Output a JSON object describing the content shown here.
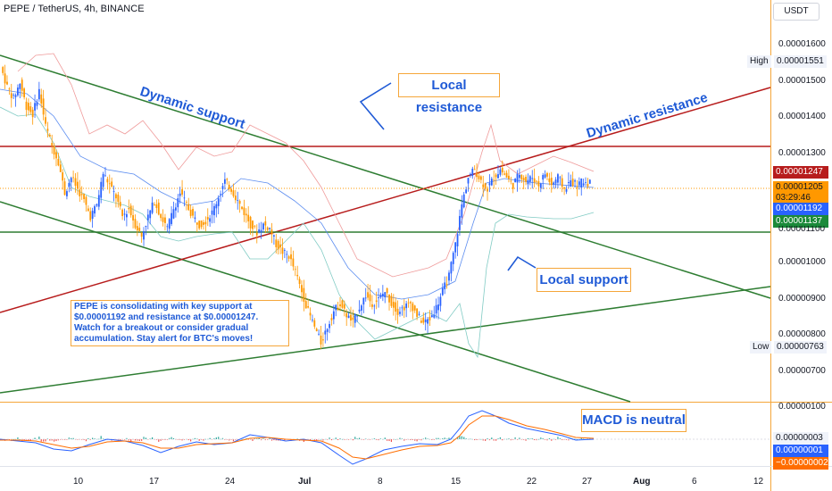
{
  "header": {
    "title": "PEPE / TetherUS, 4h, BINANCE",
    "currency_button": "USDT"
  },
  "annotations": {
    "dynamic_support": "Dynamic support",
    "dynamic_resistance": "Dynamic resistance",
    "local_resistance": "Local resistance",
    "local_support": "Local support",
    "macd_neutral": "MACD is neutral",
    "note": "PEPE is consolidating with key support at $0.00001192 and resistance at $0.00001247. Watch for a breakout or consider gradual accumulation. Stay alert for BTC's moves!"
  },
  "price_scale": {
    "ticks": [
      "0.00001600",
      "0.00001500",
      "0.00001400",
      "0.00001300",
      "0.00001000",
      "0.00000900",
      "0.00000800",
      "0.00000700"
    ],
    "high_label": "High",
    "high_value": "0.00001551",
    "low_label": "Low",
    "low_value": "0.00000763",
    "resistance_tag": "0.00001247",
    "current_price": "0.00001205",
    "countdown": "03:29:46",
    "support_tag": "0.00001192",
    "ma_tag": "0.00001137",
    "hidden_tick": "0.00001100"
  },
  "macd_scale": {
    "top_tick": "0.00000100",
    "macd_value": "0.00000003",
    "signal_value": "0.00000001",
    "hist_value": "−0.00000002"
  },
  "time_axis": [
    "10",
    "17",
    "24",
    "Jul",
    "8",
    "15",
    "22",
    "27",
    "Aug",
    "6",
    "12"
  ],
  "colors": {
    "up": "#26a69a",
    "down": "#ef5350",
    "resistance": "#b71c1c",
    "support": "#2e7d32",
    "text_blue": "#1f5ad6",
    "box_border": "#f5a63a",
    "price_line": "#ff9800"
  },
  "chart_data": {
    "type": "candlestick",
    "symbol": "PEPE / TetherUS",
    "interval": "4h",
    "exchange": "BINANCE",
    "ylim": [
      6.5e-06,
      1.67e-05
    ],
    "yticks": [
      1.6e-05,
      1.5e-05,
      1.4e-05,
      1.3e-05,
      1.2e-05,
      1.1e-05,
      1e-05,
      9e-06,
      8e-06,
      7e-06
    ],
    "x_labels": [
      "10",
      "17",
      "24",
      "Jul",
      "8",
      "15",
      "22",
      "27",
      "Aug",
      "6",
      "12"
    ],
    "key_levels": {
      "resistance": 1.247e-05,
      "support": 1.192e-05,
      "high": 1.551e-05,
      "low": 7.63e-06,
      "current": 1.205e-05
    },
    "price_path": [
      [
        0,
        1.5
      ],
      [
        1,
        1.45
      ],
      [
        2,
        1.42
      ],
      [
        3,
        1.46
      ],
      [
        4,
        1.4
      ],
      [
        5,
        1.38
      ],
      [
        6,
        1.44
      ],
      [
        7,
        1.35
      ],
      [
        8,
        1.3
      ],
      [
        9,
        1.26
      ],
      [
        10,
        1.18
      ],
      [
        11,
        1.22
      ],
      [
        12,
        1.19
      ],
      [
        13,
        1.16
      ],
      [
        14,
        1.12
      ],
      [
        15,
        1.15
      ],
      [
        16,
        1.23
      ],
      [
        17,
        1.2
      ],
      [
        18,
        1.17
      ],
      [
        19,
        1.12
      ],
      [
        20,
        1.14
      ],
      [
        21,
        1.1
      ],
      [
        22,
        1.07
      ],
      [
        23,
        1.12
      ],
      [
        24,
        1.16
      ],
      [
        25,
        1.12
      ],
      [
        26,
        1.09
      ],
      [
        27,
        1.14
      ],
      [
        28,
        1.18
      ],
      [
        29,
        1.15
      ],
      [
        30,
        1.12
      ],
      [
        31,
        1.1
      ],
      [
        32,
        1.11
      ],
      [
        33,
        1.13
      ],
      [
        34,
        1.17
      ],
      [
        35,
        1.21
      ],
      [
        36,
        1.19
      ],
      [
        37,
        1.16
      ],
      [
        38,
        1.13
      ],
      [
        39,
        1.1
      ],
      [
        40,
        1.08
      ],
      [
        41,
        1.1
      ],
      [
        42,
        1.09
      ],
      [
        43,
        1.05
      ],
      [
        44,
        1.03
      ],
      [
        45,
        1.02
      ],
      [
        46,
        0.98
      ],
      [
        47,
        0.93
      ],
      [
        48,
        0.88
      ],
      [
        49,
        0.84
      ],
      [
        50,
        0.8
      ],
      [
        51,
        0.84
      ],
      [
        52,
        0.88
      ],
      [
        53,
        0.9
      ],
      [
        54,
        0.87
      ],
      [
        55,
        0.85
      ],
      [
        56,
        0.89
      ],
      [
        57,
        0.92
      ],
      [
        58,
        0.9
      ],
      [
        59,
        0.91
      ],
      [
        60,
        0.93
      ],
      [
        61,
        0.9
      ],
      [
        62,
        0.88
      ],
      [
        63,
        0.89
      ],
      [
        64,
        0.9
      ],
      [
        65,
        0.87
      ],
      [
        66,
        0.85
      ],
      [
        67,
        0.86
      ],
      [
        68,
        0.89
      ],
      [
        69,
        0.93
      ],
      [
        70,
        0.97
      ],
      [
        71,
        1.05
      ],
      [
        72,
        1.15
      ],
      [
        73,
        1.22
      ],
      [
        74,
        1.24
      ],
      [
        75,
        1.21
      ],
      [
        76,
        1.19
      ],
      [
        77,
        1.22
      ],
      [
        78,
        1.24
      ],
      [
        79,
        1.22
      ],
      [
        80,
        1.2
      ],
      [
        81,
        1.23
      ],
      [
        82,
        1.21
      ],
      [
        83,
        1.22
      ],
      [
        84,
        1.2
      ],
      [
        85,
        1.23
      ],
      [
        86,
        1.2
      ],
      [
        87,
        1.22
      ],
      [
        88,
        1.19
      ],
      [
        89,
        1.21
      ],
      [
        90,
        1.2
      ],
      [
        91,
        1.21
      ],
      [
        92,
        1.205
      ]
    ]
  }
}
